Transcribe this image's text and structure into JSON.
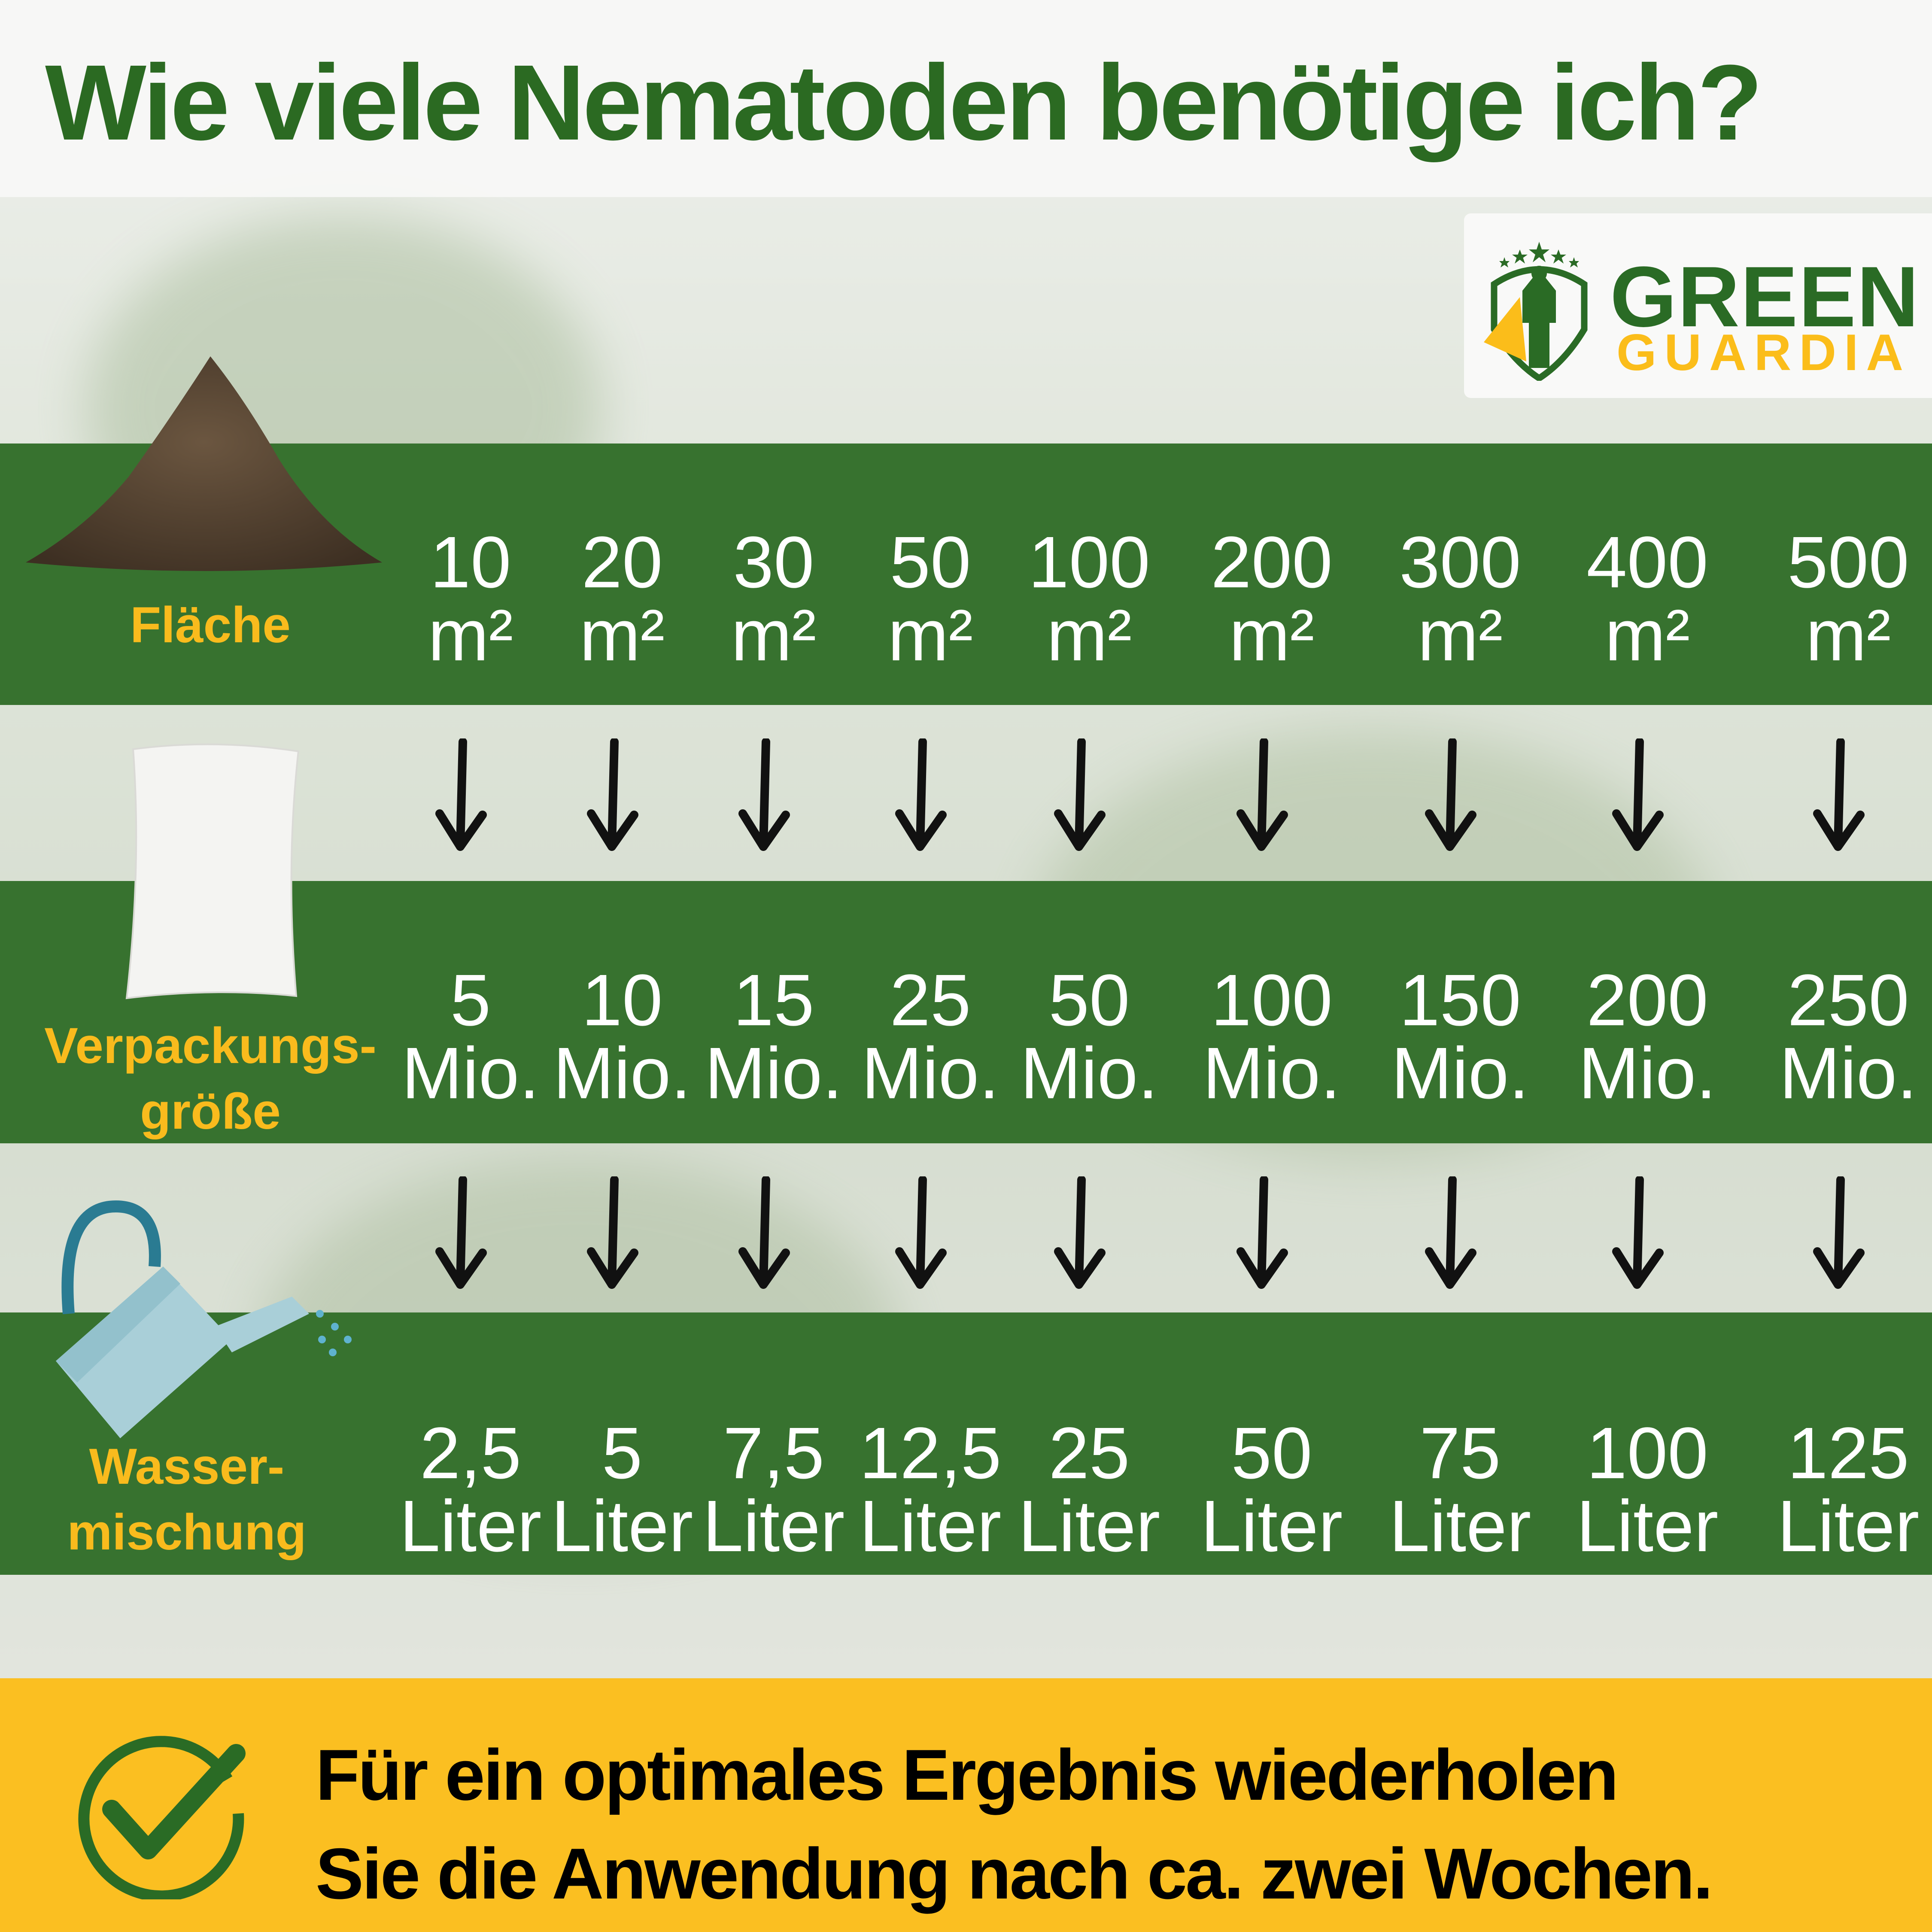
{
  "title": "Wie viele Nematoden benötige ich?",
  "logo": {
    "line1": "GREEN",
    "line2": "GUARDIA",
    "icon": "superhero-shield-logo"
  },
  "colors": {
    "green": "#37722f",
    "title_green": "#2b6a22",
    "label_yellow": "#f9bb1d",
    "footer_yellow": "#fbbf21"
  },
  "rows": [
    {
      "label": [
        "Fläche"
      ],
      "icon": "soil-pile-icon",
      "values": [
        [
          "10",
          "m²"
        ],
        [
          "20",
          "m²"
        ],
        [
          "30",
          "m²"
        ],
        [
          "50",
          "m²"
        ],
        [
          "100",
          "m²"
        ],
        [
          "200",
          "m²"
        ],
        [
          "300",
          "m²"
        ],
        [
          "400",
          "m²"
        ],
        [
          "500",
          "m²"
        ]
      ]
    },
    {
      "label": [
        "Verpackungs-",
        "größe"
      ],
      "icon": "package-bag-icon",
      "values": [
        [
          "5",
          "Mio."
        ],
        [
          "10",
          "Mio."
        ],
        [
          "15",
          "Mio."
        ],
        [
          "25",
          "Mio."
        ],
        [
          "50",
          "Mio."
        ],
        [
          "100",
          "Mio."
        ],
        [
          "150",
          "Mio."
        ],
        [
          "200",
          "Mio."
        ],
        [
          "250",
          "Mio."
        ]
      ]
    },
    {
      "label": [
        "Wasser-",
        "mischung"
      ],
      "icon": "watering-can-icon",
      "values": [
        [
          "2,5",
          "Liter"
        ],
        [
          "5",
          "Liter"
        ],
        [
          "7,5",
          "Liter"
        ],
        [
          "12,5",
          "Liter"
        ],
        [
          "25",
          "Liter"
        ],
        [
          "50",
          "Liter"
        ],
        [
          "75",
          "Liter"
        ],
        [
          "100",
          "Liter"
        ],
        [
          "125",
          "Liter"
        ]
      ]
    }
  ],
  "arrow_icon": "arrow-down-icon",
  "footer": {
    "icon": "checkmark-circle-icon",
    "line1": "Für ein optimales Ergebnis wiederholen",
    "line2": "Sie die Anwendung nach ca. zwei Wochen."
  }
}
